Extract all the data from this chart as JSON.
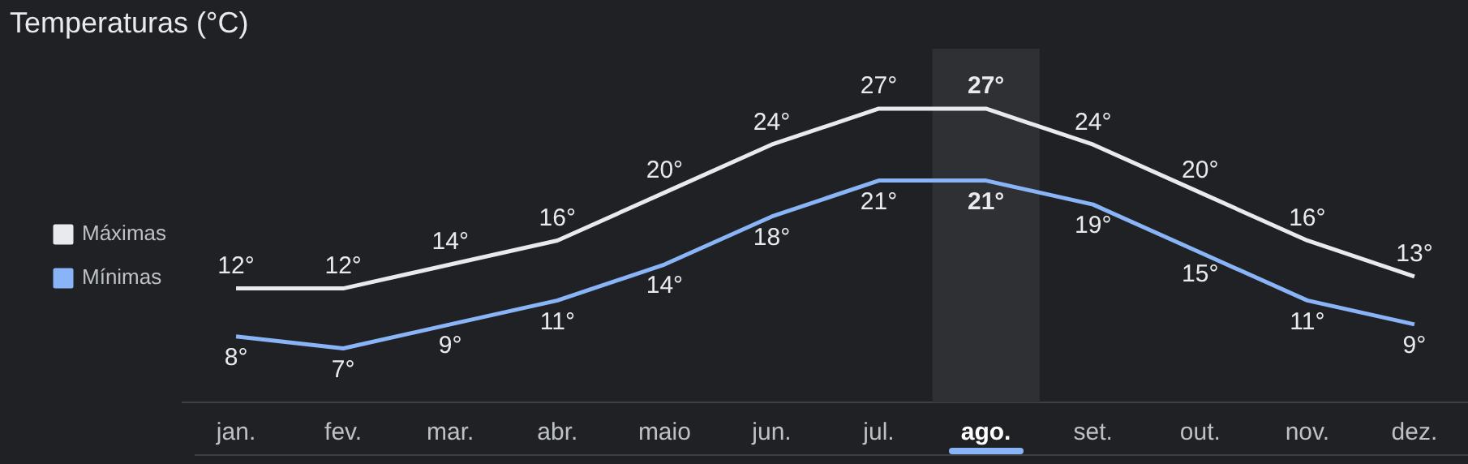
{
  "chart_data": {
    "type": "line",
    "title": "Temperaturas (°C)",
    "categories": [
      "jan.",
      "fev.",
      "mar.",
      "abr.",
      "maio",
      "jun.",
      "jul.",
      "ago.",
      "set.",
      "out.",
      "nov.",
      "dez."
    ],
    "series": [
      {
        "name": "Máximas",
        "color": "#e8eaed",
        "values": [
          12,
          12,
          14,
          16,
          20,
          24,
          27,
          27,
          24,
          20,
          16,
          13
        ],
        "value_labels": [
          "12°",
          "12°",
          "14°",
          "16°",
          "20°",
          "24°",
          "27°",
          "27°",
          "24°",
          "20°",
          "16°",
          "13°"
        ]
      },
      {
        "name": "Mínimas",
        "color": "#8ab4f8",
        "values": [
          8,
          7,
          9,
          11,
          14,
          18,
          21,
          21,
          19,
          15,
          11,
          9
        ],
        "value_labels": [
          "8°",
          "7°",
          "9°",
          "11°",
          "14°",
          "18°",
          "21°",
          "21°",
          "19°",
          "15°",
          "11°",
          "9°"
        ]
      }
    ],
    "bands": [
      {
        "axis": "x",
        "from": "ago.",
        "to": "ago.",
        "color": "#2f3033"
      }
    ],
    "legend": "left",
    "grid": false,
    "marker": "none",
    "line_style": "solid"
  }
}
